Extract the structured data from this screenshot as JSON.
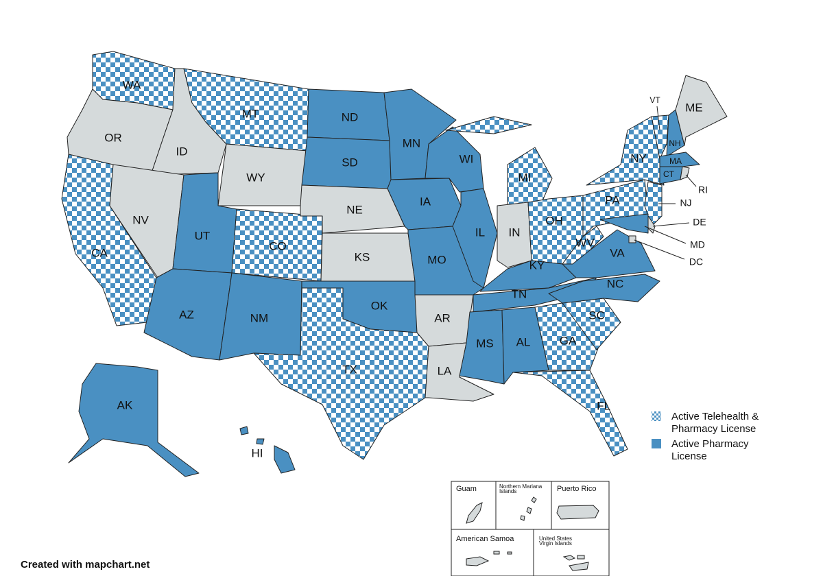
{
  "map": {
    "states": [
      {
        "label": "WA",
        "status": "telehealth"
      },
      {
        "label": "OR",
        "status": "none"
      },
      {
        "label": "CA",
        "status": "telehealth"
      },
      {
        "label": "ID",
        "status": "none"
      },
      {
        "label": "NV",
        "status": "none"
      },
      {
        "label": "MT",
        "status": "telehealth"
      },
      {
        "label": "WY",
        "status": "none"
      },
      {
        "label": "UT",
        "status": "pharmacy"
      },
      {
        "label": "AZ",
        "status": "pharmacy"
      },
      {
        "label": "CO",
        "status": "telehealth"
      },
      {
        "label": "NM",
        "status": "pharmacy"
      },
      {
        "label": "ND",
        "status": "pharmacy"
      },
      {
        "label": "SD",
        "status": "pharmacy"
      },
      {
        "label": "NE",
        "status": "none"
      },
      {
        "label": "KS",
        "status": "none"
      },
      {
        "label": "OK",
        "status": "pharmacy"
      },
      {
        "label": "TX",
        "status": "telehealth"
      },
      {
        "label": "MN",
        "status": "pharmacy"
      },
      {
        "label": "IA",
        "status": "pharmacy"
      },
      {
        "label": "MO",
        "status": "pharmacy"
      },
      {
        "label": "AR",
        "status": "none"
      },
      {
        "label": "LA",
        "status": "none"
      },
      {
        "label": "WI",
        "status": "pharmacy"
      },
      {
        "label": "IL",
        "status": "pharmacy"
      },
      {
        "label": "MI",
        "status": "telehealth"
      },
      {
        "label": "IN",
        "status": "none"
      },
      {
        "label": "OH",
        "status": "telehealth"
      },
      {
        "label": "KY",
        "status": "pharmacy"
      },
      {
        "label": "TN",
        "status": "pharmacy"
      },
      {
        "label": "MS",
        "status": "pharmacy"
      },
      {
        "label": "AL",
        "status": "pharmacy"
      },
      {
        "label": "GA",
        "status": "telehealth"
      },
      {
        "label": "FL",
        "status": "telehealth"
      },
      {
        "label": "SC",
        "status": "telehealth"
      },
      {
        "label": "NC",
        "status": "pharmacy"
      },
      {
        "label": "VA",
        "status": "pharmacy"
      },
      {
        "label": "WV",
        "status": "telehealth"
      },
      {
        "label": "PA",
        "status": "telehealth"
      },
      {
        "label": "NY",
        "status": "telehealth"
      },
      {
        "label": "VT",
        "status": "telehealth"
      },
      {
        "label": "NH",
        "status": "pharmacy"
      },
      {
        "label": "ME",
        "status": "none"
      },
      {
        "label": "MA",
        "status": "pharmacy"
      },
      {
        "label": "CT",
        "status": "pharmacy"
      },
      {
        "label": "RI",
        "status": "none"
      },
      {
        "label": "NJ",
        "status": "telehealth"
      },
      {
        "label": "DE",
        "status": "none"
      },
      {
        "label": "MD",
        "status": "pharmacy"
      },
      {
        "label": "DC",
        "status": "none"
      },
      {
        "label": "AK",
        "status": "pharmacy"
      },
      {
        "label": "HI",
        "status": "pharmacy"
      }
    ],
    "legend": [
      {
        "status": "telehealth",
        "lines": [
          "Active Telehealth  &",
          "Pharmacy License"
        ]
      },
      {
        "status": "pharmacy",
        "lines": [
          "Active Pharmacy",
          "License"
        ]
      }
    ],
    "territories": [
      {
        "lines": [
          "Guam"
        ]
      },
      {
        "lines": [
          "Northern Mariana",
          "Islands"
        ]
      },
      {
        "lines": [
          "Puerto Rico"
        ]
      },
      {
        "lines": [
          "American Samoa"
        ]
      },
      {
        "lines": [
          "United States",
          "Virgin Islands"
        ]
      }
    ],
    "credit": "Created with mapchart.net"
  }
}
